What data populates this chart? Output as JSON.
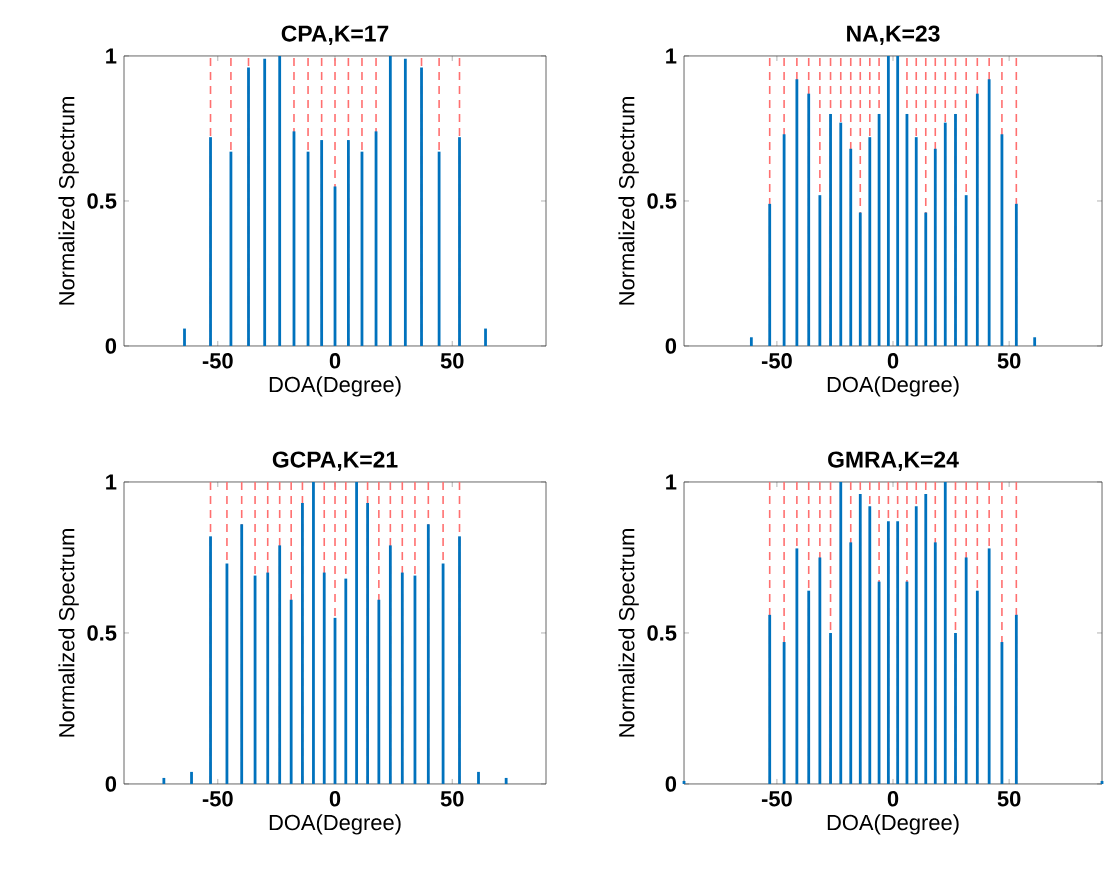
{
  "chart_data": [
    {
      "type": "bar",
      "title": "CPA,K=17",
      "xlabel": "DOA(Degree)",
      "ylabel": "Normalized Spectrum",
      "color": "#0072bd",
      "x": [
        -64.2,
        -53.1,
        -44.4,
        -36.9,
        -30,
        -23.6,
        -17.5,
        -11.5,
        -5.7,
        0,
        5.7,
        11.5,
        17.5,
        23.6,
        30,
        36.9,
        44.4,
        53.1,
        64.2
      ],
      "values": [
        0.06,
        0.72,
        0.67,
        0.96,
        0.99,
        1,
        0.74,
        0.67,
        0.71,
        0.55,
        0.71,
        0.67,
        0.74,
        1,
        0.99,
        0.96,
        0.67,
        0.72,
        0.06
      ],
      "xlim": [
        -90,
        90
      ],
      "ylim": [
        0,
        1
      ],
      "xticks": [
        -50,
        0,
        50
      ],
      "yticks": [
        0,
        0.5,
        1
      ],
      "ref_lines": [
        {
          "axis": "x",
          "value": -53.1,
          "color": "#ff7070",
          "line_style": "dashed"
        },
        {
          "axis": "x",
          "value": -44.4,
          "color": "#ff7070",
          "line_style": "dashed"
        },
        {
          "axis": "x",
          "value": -36.9,
          "color": "#ff7070",
          "line_style": "dashed"
        },
        {
          "axis": "x",
          "value": -17.5,
          "color": "#ff7070",
          "line_style": "dashed"
        },
        {
          "axis": "x",
          "value": -11.5,
          "color": "#ff7070",
          "line_style": "dashed"
        },
        {
          "axis": "x",
          "value": -5.7,
          "color": "#ff7070",
          "line_style": "dashed"
        },
        {
          "axis": "x",
          "value": 0,
          "color": "#ff7070",
          "line_style": "dashed"
        },
        {
          "axis": "x",
          "value": 5.7,
          "color": "#ff7070",
          "line_style": "dashed"
        },
        {
          "axis": "x",
          "value": 11.5,
          "color": "#ff7070",
          "line_style": "dashed"
        },
        {
          "axis": "x",
          "value": 17.5,
          "color": "#ff7070",
          "line_style": "dashed"
        },
        {
          "axis": "x",
          "value": 36.9,
          "color": "#ff7070",
          "line_style": "dashed"
        },
        {
          "axis": "x",
          "value": 44.4,
          "color": "#ff7070",
          "line_style": "dashed"
        },
        {
          "axis": "x",
          "value": 53.1,
          "color": "#ff7070",
          "line_style": "dashed"
        }
      ]
    },
    {
      "type": "bar",
      "title": "NA,K=23",
      "xlabel": "DOA(Degree)",
      "ylabel": "Normalized Spectrum",
      "color": "#0072bd",
      "x": [
        -61,
        -53.1,
        -46.9,
        -41.4,
        -36.3,
        -31.5,
        -26.9,
        -22.5,
        -18.2,
        -14.1,
        -10,
        -6,
        -2,
        2,
        6,
        10,
        14.1,
        18.2,
        22.5,
        26.9,
        31.5,
        36.3,
        41.4,
        46.9,
        53.1,
        61
      ],
      "values": [
        0.03,
        0.49,
        0.73,
        0.92,
        0.87,
        0.52,
        0.8,
        0.77,
        0.68,
        0.46,
        0.72,
        0.8,
        1,
        1,
        0.8,
        0.72,
        0.46,
        0.68,
        0.77,
        0.8,
        0.52,
        0.87,
        0.92,
        0.73,
        0.49,
        0.03
      ],
      "xlim": [
        -90,
        90
      ],
      "ylim": [
        0,
        1
      ],
      "xticks": [
        -50,
        0,
        50
      ],
      "yticks": [
        0,
        0.5,
        1
      ],
      "ref_lines": [
        {
          "axis": "x",
          "value": -53.1,
          "color": "#ff7070",
          "line_style": "dashed"
        },
        {
          "axis": "x",
          "value": -46.9,
          "color": "#ff7070",
          "line_style": "dashed"
        },
        {
          "axis": "x",
          "value": -41.4,
          "color": "#ff7070",
          "line_style": "dashed"
        },
        {
          "axis": "x",
          "value": -36.3,
          "color": "#ff7070",
          "line_style": "dashed"
        },
        {
          "axis": "x",
          "value": -31.5,
          "color": "#ff7070",
          "line_style": "dashed"
        },
        {
          "axis": "x",
          "value": -26.9,
          "color": "#ff7070",
          "line_style": "dashed"
        },
        {
          "axis": "x",
          "value": -22.5,
          "color": "#ff7070",
          "line_style": "dashed"
        },
        {
          "axis": "x",
          "value": -18.2,
          "color": "#ff7070",
          "line_style": "dashed"
        },
        {
          "axis": "x",
          "value": -14.1,
          "color": "#ff7070",
          "line_style": "dashed"
        },
        {
          "axis": "x",
          "value": -10,
          "color": "#ff7070",
          "line_style": "dashed"
        },
        {
          "axis": "x",
          "value": -6,
          "color": "#ff7070",
          "line_style": "dashed"
        },
        {
          "axis": "x",
          "value": 6,
          "color": "#ff7070",
          "line_style": "dashed"
        },
        {
          "axis": "x",
          "value": 10,
          "color": "#ff7070",
          "line_style": "dashed"
        },
        {
          "axis": "x",
          "value": 14.1,
          "color": "#ff7070",
          "line_style": "dashed"
        },
        {
          "axis": "x",
          "value": 18.2,
          "color": "#ff7070",
          "line_style": "dashed"
        },
        {
          "axis": "x",
          "value": 22.5,
          "color": "#ff7070",
          "line_style": "dashed"
        },
        {
          "axis": "x",
          "value": 26.9,
          "color": "#ff7070",
          "line_style": "dashed"
        },
        {
          "axis": "x",
          "value": 31.5,
          "color": "#ff7070",
          "line_style": "dashed"
        },
        {
          "axis": "x",
          "value": 36.3,
          "color": "#ff7070",
          "line_style": "dashed"
        },
        {
          "axis": "x",
          "value": 41.4,
          "color": "#ff7070",
          "line_style": "dashed"
        },
        {
          "axis": "x",
          "value": 46.9,
          "color": "#ff7070",
          "line_style": "dashed"
        },
        {
          "axis": "x",
          "value": 53.1,
          "color": "#ff7070",
          "line_style": "dashed"
        }
      ]
    },
    {
      "type": "bar",
      "title": "GCPA,K=21",
      "xlabel": "DOA(Degree)",
      "ylabel": "Normalized Spectrum",
      "color": "#0072bd",
      "x": [
        -73,
        -61.2,
        -53.1,
        -46.1,
        -39.8,
        -34.1,
        -28.7,
        -23.6,
        -18.7,
        -13.9,
        -9.2,
        -4.6,
        0,
        4.6,
        9.2,
        13.9,
        18.7,
        23.6,
        28.7,
        34.1,
        39.8,
        46.1,
        53.1,
        61.2,
        73
      ],
      "values": [
        0.02,
        0.04,
        0.82,
        0.73,
        0.86,
        0.69,
        0.7,
        0.79,
        0.61,
        0.93,
        1,
        0.7,
        0.55,
        0.68,
        1,
        0.93,
        0.61,
        0.79,
        0.7,
        0.69,
        0.86,
        0.73,
        0.82,
        0.04,
        0.02
      ],
      "xlim": [
        -90,
        90
      ],
      "ylim": [
        0,
        1
      ],
      "xticks": [
        -50,
        0,
        50
      ],
      "yticks": [
        0,
        0.5,
        1
      ],
      "ref_lines": [
        {
          "axis": "x",
          "value": -53.1,
          "color": "#ff7070",
          "line_style": "dashed"
        },
        {
          "axis": "x",
          "value": -46.1,
          "color": "#ff7070",
          "line_style": "dashed"
        },
        {
          "axis": "x",
          "value": -39.8,
          "color": "#ff7070",
          "line_style": "dashed"
        },
        {
          "axis": "x",
          "value": -34.1,
          "color": "#ff7070",
          "line_style": "dashed"
        },
        {
          "axis": "x",
          "value": -28.7,
          "color": "#ff7070",
          "line_style": "dashed"
        },
        {
          "axis": "x",
          "value": -23.6,
          "color": "#ff7070",
          "line_style": "dashed"
        },
        {
          "axis": "x",
          "value": -18.7,
          "color": "#ff7070",
          "line_style": "dashed"
        },
        {
          "axis": "x",
          "value": -13.9,
          "color": "#ff7070",
          "line_style": "dashed"
        },
        {
          "axis": "x",
          "value": -4.6,
          "color": "#ff7070",
          "line_style": "dashed"
        },
        {
          "axis": "x",
          "value": 0,
          "color": "#ff7070",
          "line_style": "dashed"
        },
        {
          "axis": "x",
          "value": 4.6,
          "color": "#ff7070",
          "line_style": "dashed"
        },
        {
          "axis": "x",
          "value": 13.9,
          "color": "#ff7070",
          "line_style": "dashed"
        },
        {
          "axis": "x",
          "value": 18.7,
          "color": "#ff7070",
          "line_style": "dashed"
        },
        {
          "axis": "x",
          "value": 23.6,
          "color": "#ff7070",
          "line_style": "dashed"
        },
        {
          "axis": "x",
          "value": 28.7,
          "color": "#ff7070",
          "line_style": "dashed"
        },
        {
          "axis": "x",
          "value": 34.1,
          "color": "#ff7070",
          "line_style": "dashed"
        },
        {
          "axis": "x",
          "value": 39.8,
          "color": "#ff7070",
          "line_style": "dashed"
        },
        {
          "axis": "x",
          "value": 46.1,
          "color": "#ff7070",
          "line_style": "dashed"
        },
        {
          "axis": "x",
          "value": 53.1,
          "color": "#ff7070",
          "line_style": "dashed"
        }
      ]
    },
    {
      "type": "bar",
      "title": "GMRA,K=24",
      "xlabel": "DOA(Degree)",
      "ylabel": "Normalized Spectrum",
      "color": "#0072bd",
      "x": [
        -90,
        -53.1,
        -46.9,
        -41.4,
        -36.3,
        -31.5,
        -26.9,
        -22.5,
        -18.2,
        -14.1,
        -10,
        -6,
        -2,
        2,
        6,
        10,
        14.1,
        18.2,
        22.5,
        26.9,
        31.5,
        36.3,
        41.4,
        46.9,
        53.1,
        90
      ],
      "values": [
        0.01,
        0.56,
        0.47,
        0.78,
        0.64,
        0.75,
        0.5,
        1,
        0.8,
        0.96,
        0.92,
        0.67,
        0.87,
        0.87,
        0.67,
        0.92,
        0.96,
        0.8,
        1,
        0.5,
        0.75,
        0.64,
        0.78,
        0.47,
        0.56,
        0.01
      ],
      "xlim": [
        -90,
        90
      ],
      "ylim": [
        0,
        1
      ],
      "xticks": [
        -50,
        0,
        50
      ],
      "yticks": [
        0,
        0.5,
        1
      ],
      "ref_lines": [
        {
          "axis": "x",
          "value": -53.1,
          "color": "#ff7070",
          "line_style": "dashed"
        },
        {
          "axis": "x",
          "value": -46.9,
          "color": "#ff7070",
          "line_style": "dashed"
        },
        {
          "axis": "x",
          "value": -41.4,
          "color": "#ff7070",
          "line_style": "dashed"
        },
        {
          "axis": "x",
          "value": -36.3,
          "color": "#ff7070",
          "line_style": "dashed"
        },
        {
          "axis": "x",
          "value": -31.5,
          "color": "#ff7070",
          "line_style": "dashed"
        },
        {
          "axis": "x",
          "value": -26.9,
          "color": "#ff7070",
          "line_style": "dashed"
        },
        {
          "axis": "x",
          "value": -18.2,
          "color": "#ff7070",
          "line_style": "dashed"
        },
        {
          "axis": "x",
          "value": -14.1,
          "color": "#ff7070",
          "line_style": "dashed"
        },
        {
          "axis": "x",
          "value": -10,
          "color": "#ff7070",
          "line_style": "dashed"
        },
        {
          "axis": "x",
          "value": -6,
          "color": "#ff7070",
          "line_style": "dashed"
        },
        {
          "axis": "x",
          "value": -2,
          "color": "#ff7070",
          "line_style": "dashed"
        },
        {
          "axis": "x",
          "value": 2,
          "color": "#ff7070",
          "line_style": "dashed"
        },
        {
          "axis": "x",
          "value": 6,
          "color": "#ff7070",
          "line_style": "dashed"
        },
        {
          "axis": "x",
          "value": 10,
          "color": "#ff7070",
          "line_style": "dashed"
        },
        {
          "axis": "x",
          "value": 14.1,
          "color": "#ff7070",
          "line_style": "dashed"
        },
        {
          "axis": "x",
          "value": 18.2,
          "color": "#ff7070",
          "line_style": "dashed"
        },
        {
          "axis": "x",
          "value": 26.9,
          "color": "#ff7070",
          "line_style": "dashed"
        },
        {
          "axis": "x",
          "value": 31.5,
          "color": "#ff7070",
          "line_style": "dashed"
        },
        {
          "axis": "x",
          "value": 36.3,
          "color": "#ff7070",
          "line_style": "dashed"
        },
        {
          "axis": "x",
          "value": 41.4,
          "color": "#ff7070",
          "line_style": "dashed"
        },
        {
          "axis": "x",
          "value": 46.9,
          "color": "#ff7070",
          "line_style": "dashed"
        },
        {
          "axis": "x",
          "value": 53.1,
          "color": "#ff7070",
          "line_style": "dashed"
        }
      ]
    }
  ]
}
